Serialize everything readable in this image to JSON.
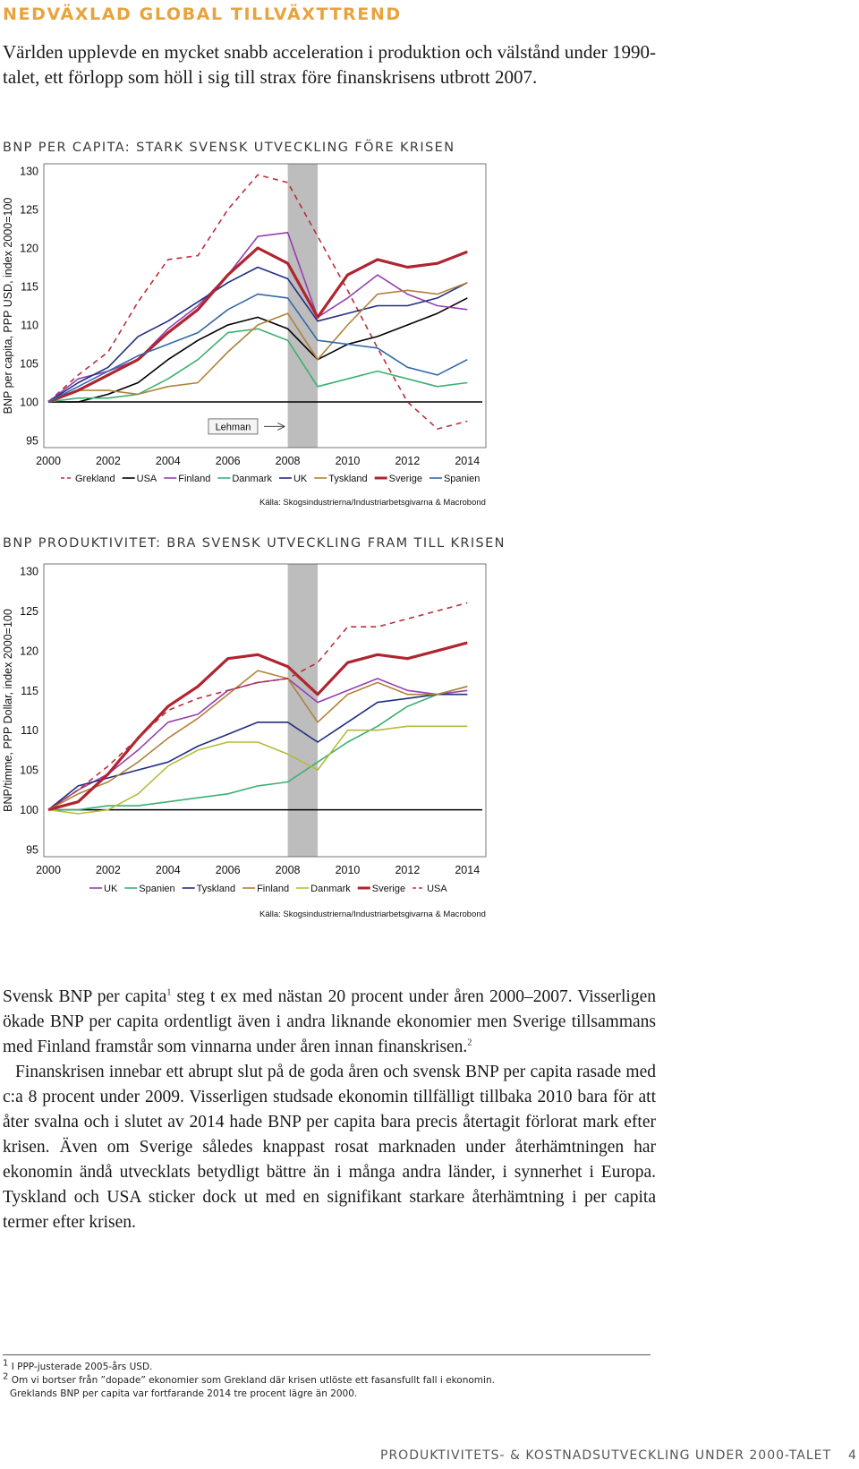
{
  "heading": "NEDVÄXLAD GLOBAL TILLVÄXTTREND",
  "intro": "Världen upplevde en mycket snabb acceleration i produktion och välstånd under 1990-talet, ett förlopp som höll i sig till strax före finanskrisens utbrott 2007.",
  "chart1": {
    "title": "BNP PER CAPITA: STARK SVENSK UTVECKLING FÖRE KRISEN",
    "source": "Källa: Skogsindustrierna/Industriarbetsgivarna & Macrobond",
    "annotation": "Lehman"
  },
  "chart2": {
    "title": "BNP PRODUKTIVITET: BRA SVENSK UTVECKLING FRAM TILL KRISEN",
    "source": "Källa: Skogsindustrierna/Industriarbetsgivarna & Macrobond"
  },
  "chart_data": [
    {
      "type": "line",
      "title": "BNP PER CAPITA: STARK SVENSK UTVECKLING FÖRE KRISEN",
      "xlabel": "",
      "ylabel": "BNP per capita, PPP USD, index 2000=100",
      "xlim": [
        2000,
        2014.5
      ],
      "ylim": [
        95,
        130
      ],
      "xticks": [
        2000,
        2002,
        2004,
        2006,
        2008,
        2010,
        2012,
        2014
      ],
      "yticks": [
        95,
        100,
        105,
        110,
        115,
        120,
        125,
        130
      ],
      "grid": false,
      "legend": "bottom",
      "shaded_band": [
        2008,
        2009
      ],
      "annotation": "Lehman",
      "x": [
        2000,
        2001,
        2002,
        2003,
        2004,
        2005,
        2006,
        2007,
        2008,
        2009,
        2010,
        2011,
        2012,
        2013,
        2014
      ],
      "series": [
        {
          "name": "Grekland",
          "color": "#b8303a",
          "dashed": true,
          "values": [
            100,
            103.5,
            106.5,
            113,
            118.5,
            119,
            125,
            129.5,
            128.5,
            121.5,
            114.5,
            107,
            100,
            96.5,
            97.5
          ]
        },
        {
          "name": "USA",
          "color": "#000000",
          "values": [
            100,
            100,
            101,
            102.5,
            105.5,
            108,
            110,
            111,
            109.5,
            105.5,
            107.5,
            108.5,
            110,
            111.5,
            113.5
          ]
        },
        {
          "name": "Finland",
          "color": "#9540b0",
          "values": [
            100,
            103,
            104,
            105.5,
            109.5,
            112.5,
            116.5,
            121.5,
            122,
            111,
            113.5,
            116.5,
            114,
            112.5,
            112
          ]
        },
        {
          "name": "Danmark",
          "color": "#3db070",
          "values": [
            100,
            100.5,
            100.5,
            101,
            103,
            105.5,
            109,
            109.5,
            108,
            102,
            103,
            104,
            103,
            102,
            102.5
          ]
        },
        {
          "name": "UK",
          "color": "#1f2f80",
          "values": [
            100,
            102.5,
            104.5,
            108.5,
            110.5,
            113,
            115.5,
            117.5,
            116,
            110.5,
            111.5,
            112.5,
            112.5,
            113.5,
            115.5
          ]
        },
        {
          "name": "Tyskland",
          "color": "#b0823a",
          "values": [
            100,
            101.5,
            101.5,
            101,
            102,
            102.5,
            106.5,
            110,
            111.5,
            105.5,
            110,
            114,
            114.5,
            114,
            115.5
          ]
        },
        {
          "name": "Sverige",
          "color": "#b02430",
          "bold": true,
          "values": [
            100,
            101.5,
            103.5,
            105.5,
            109,
            112,
            116.5,
            120,
            118,
            111,
            116.5,
            118.5,
            117.5,
            118,
            119.5
          ]
        },
        {
          "name": "Spanien",
          "color": "#3468a8",
          "values": [
            100,
            102,
            104,
            106,
            107.5,
            109,
            112,
            114,
            113.5,
            108,
            107.5,
            107,
            104.5,
            103.5,
            105.5
          ]
        }
      ]
    },
    {
      "type": "line",
      "title": "BNP PRODUKTIVITET: BRA SVENSK UTVECKLING FRAM TILL KRISEN",
      "xlabel": "",
      "ylabel": "BNP/timme, PPP Dollar, index 2000=100",
      "xlim": [
        2000,
        2014.5
      ],
      "ylim": [
        95,
        130
      ],
      "xticks": [
        2000,
        2002,
        2004,
        2006,
        2008,
        2010,
        2012,
        2014
      ],
      "yticks": [
        95,
        100,
        105,
        110,
        115,
        120,
        125,
        130
      ],
      "grid": false,
      "legend": "bottom",
      "shaded_band": [
        2008,
        2009
      ],
      "x": [
        2000,
        2001,
        2002,
        2003,
        2004,
        2005,
        2006,
        2007,
        2008,
        2009,
        2010,
        2011,
        2012,
        2013,
        2014
      ],
      "series": [
        {
          "name": "UK",
          "color": "#9540b0",
          "values": [
            100,
            102.5,
            104.5,
            107.5,
            111,
            112,
            115,
            116,
            116.5,
            113.5,
            115,
            116.5,
            115,
            114.5,
            115
          ]
        },
        {
          "name": "Spanien",
          "color": "#3db070",
          "values": [
            100,
            100,
            100.5,
            100.5,
            101,
            101.5,
            102,
            103,
            103.5,
            106,
            108.5,
            110.5,
            113,
            114.5,
            115.5
          ]
        },
        {
          "name": "Tyskland",
          "color": "#1f2f80",
          "values": [
            100,
            103,
            104,
            105,
            106,
            108,
            109.5,
            111,
            111,
            108.5,
            111,
            113.5,
            114,
            114.5,
            114.5
          ]
        },
        {
          "name": "Finland",
          "color": "#b0823a",
          "values": [
            100,
            102,
            103.5,
            106,
            109,
            111.5,
            114.5,
            117.5,
            116.5,
            111,
            114.5,
            116,
            114.5,
            114.5,
            115.5
          ]
        },
        {
          "name": "Danmark",
          "color": "#b5bb3a",
          "values": [
            100,
            99.5,
            100,
            102,
            105.5,
            107.5,
            108.5,
            108.5,
            107,
            105,
            110,
            110,
            110.5,
            110.5,
            110.5
          ]
        },
        {
          "name": "Sverige",
          "color": "#b02430",
          "bold": true,
          "values": [
            100,
            101,
            104.5,
            109,
            113,
            115.5,
            119,
            119.5,
            118,
            114.5,
            118.5,
            119.5,
            119,
            120,
            121
          ]
        },
        {
          "name": "USA",
          "color": "#b8303a",
          "dashed": true,
          "values": [
            100,
            102.5,
            105.5,
            109,
            112.5,
            114,
            115,
            116,
            116.5,
            118.5,
            123,
            123,
            124,
            125,
            126
          ]
        }
      ]
    }
  ],
  "body": {
    "p1_part1": "Svensk BNP per capita",
    "p1_fn1": "1",
    "p1_part2": " steg t ex med nästan 20 procent under åren 2000–2007. Visserligen ökade BNP per capita ordentligt även i andra liknande ekonomier men Sverige tillsammans med Finland framstår som vinnarna under åren innan finanskrisen.",
    "p1_fn2": "2",
    "p2": "Finanskrisen innebar ett abrupt slut på de goda åren och svensk BNP per capita rasade med c:a 8 procent under 2009. Visserligen studsade ekonomin tillfälligt tillbaka 2010 bara för att åter svalna och i slutet av 2014 hade BNP per capita bara precis återtagit förlorat mark efter krisen. Även om Sverige således knappast rosat marknaden under återhämtningen har ekonomin ändå utvecklats betydligt bättre än i många andra länder, i synnerhet i Europa. Tyskland och USA sticker dock ut med en signifikant starkare återhämtning i per capita termer efter krisen."
  },
  "footnotes": {
    "fn1_num": "1",
    "fn1": " I PPP-justerade 2005-års USD.",
    "fn2_num": "2",
    "fn2": " Om vi bortser från ”dopade” ekonomier som Grekland där krisen utlöste ett fasansfullt fall i ekonomin.",
    "fn2_cont": "Greklands BNP per capita var fortfarande 2014 tre procent lägre än 2000."
  },
  "footer": {
    "title": "PRODUKTIVITETS- & KOSTNADSUTVECKLING UNDER 2000-TALET",
    "page": "4"
  }
}
